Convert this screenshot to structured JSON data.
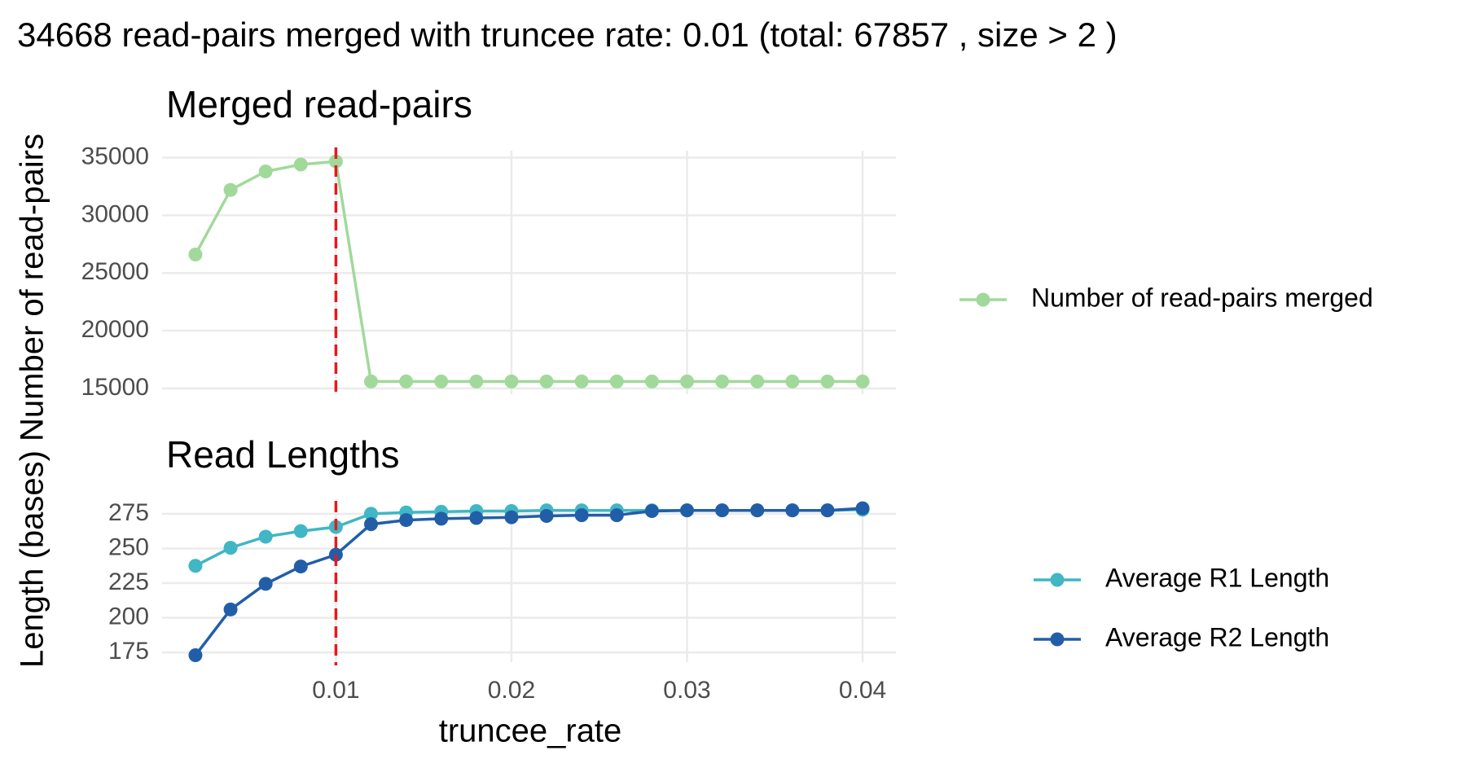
{
  "title": "34668 read-pairs merged with truncee rate: 0.01 (total: 67857 , size > 2 )",
  "ylabel": "Length (bases) Number of read-pairs",
  "xlabel": "truncee_rate",
  "chart_data": [
    {
      "type": "line",
      "title": "Merged read-pairs",
      "x": [
        0.002,
        0.004,
        0.006,
        0.008,
        0.01,
        0.012,
        0.014,
        0.016,
        0.018,
        0.02,
        0.022,
        0.024,
        0.026,
        0.028,
        0.03,
        0.032,
        0.034,
        0.036,
        0.038,
        0.04
      ],
      "series": [
        {
          "name": "Number of read-pairs merged",
          "color": "#a1d99b",
          "values": [
            26600,
            32200,
            33800,
            34400,
            34668,
            15600,
            15600,
            15600,
            15600,
            15600,
            15600,
            15600,
            15600,
            15600,
            15600,
            15600,
            15600,
            15600,
            15600,
            15600
          ]
        }
      ],
      "xlim": [
        0.0001,
        0.0419
      ],
      "xticks": [
        0.01,
        0.02,
        0.03,
        0.04
      ],
      "show_xtick_labels": false,
      "ylim": [
        14500,
        35600
      ],
      "yticks": [
        15000,
        20000,
        25000,
        30000,
        35000
      ],
      "vline": 0.01,
      "vline_color": "#e41a1c",
      "grid": true
    },
    {
      "type": "line",
      "title": "Read Lengths",
      "x": [
        0.002,
        0.004,
        0.006,
        0.008,
        0.01,
        0.012,
        0.014,
        0.016,
        0.018,
        0.02,
        0.022,
        0.024,
        0.026,
        0.028,
        0.03,
        0.032,
        0.034,
        0.036,
        0.038,
        0.04
      ],
      "series": [
        {
          "name": "Average R1 Length",
          "color": "#41b6c4",
          "values": [
            237.5,
            250.5,
            258.5,
            262.5,
            265.5,
            275,
            276,
            276.5,
            277,
            277,
            277.5,
            277.5,
            277.5,
            277.5,
            277.5,
            277.5,
            277.5,
            277.5,
            277.5,
            278
          ]
        },
        {
          "name": "Average R2 Length",
          "color": "#225ea8",
          "values": [
            173,
            206,
            224.5,
            237,
            245.5,
            267.5,
            270.5,
            271.5,
            272,
            272.5,
            273.5,
            274,
            274,
            277,
            277.5,
            277.5,
            277.5,
            277.5,
            277.5,
            279
          ]
        }
      ],
      "xlim": [
        0.0001,
        0.0419
      ],
      "xticks": [
        0.01,
        0.02,
        0.03,
        0.04
      ],
      "show_xtick_labels": true,
      "ylim": [
        168,
        282
      ],
      "yticks": [
        175,
        200,
        225,
        250,
        275
      ],
      "vline": 0.01,
      "vline_color": "#e41a1c",
      "grid": true
    }
  ]
}
